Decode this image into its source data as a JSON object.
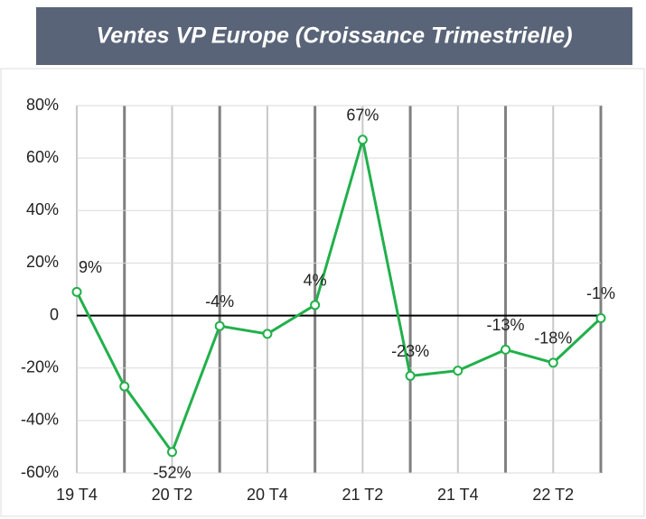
{
  "chart_data": {
    "type": "line",
    "title": "Ventes VP Europe (Croissance Trimestrielle)",
    "categories": [
      "19 T4",
      null,
      "20 T2",
      null,
      "20 T4",
      null,
      "21 T2",
      null,
      "21 T4",
      null,
      "22 T2",
      null
    ],
    "series": [
      {
        "name": "Ventes VP Europe",
        "color": "#21b04b",
        "values": [
          9,
          -27,
          -52,
          -4,
          -7,
          4,
          67,
          -23,
          -21,
          -13,
          -18,
          -1
        ],
        "value_labels": [
          "9%",
          null,
          "-52%",
          "-4%",
          null,
          "4%",
          "67%",
          "-23%",
          null,
          "-13%",
          "-18%",
          "-1%"
        ]
      }
    ],
    "ylim": [
      -60,
      80
    ],
    "yticks": [
      {
        "value": -60,
        "label": "-60%"
      },
      {
        "value": -40,
        "label": "-40%"
      },
      {
        "value": -20,
        "label": "-20%"
      },
      0,
      {
        "value": 20,
        "label": "20%"
      },
      {
        "value": 40,
        "label": "40%"
      },
      {
        "value": 60,
        "label": "60%"
      },
      {
        "value": 80,
        "label": "80%"
      }
    ],
    "grid": true
  }
}
